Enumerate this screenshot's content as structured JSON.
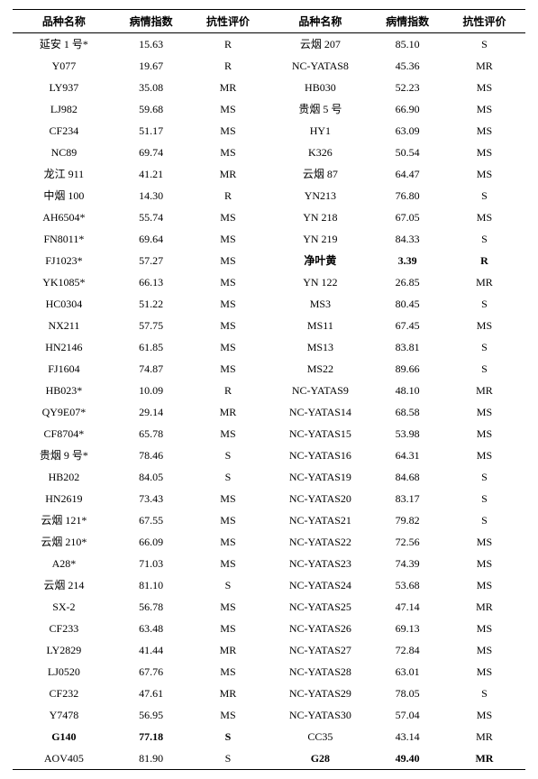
{
  "headers": {
    "name": "品种名称",
    "index": "病情指数",
    "eval": "抗性评价"
  },
  "rows": [
    {
      "l": {
        "name": "延安 1 号*",
        "idx": "15.63",
        "ev": "R"
      },
      "r": {
        "name": "云烟 207",
        "idx": "85.10",
        "ev": "S"
      }
    },
    {
      "l": {
        "name": "Y077",
        "idx": "19.67",
        "ev": "R"
      },
      "r": {
        "name": "NC-YATAS8",
        "idx": "45.36",
        "ev": "MR"
      }
    },
    {
      "l": {
        "name": "LY937",
        "idx": "35.08",
        "ev": "MR"
      },
      "r": {
        "name": "HB030",
        "idx": "52.23",
        "ev": "MS"
      }
    },
    {
      "l": {
        "name": "LJ982",
        "idx": "59.68",
        "ev": "MS"
      },
      "r": {
        "name": "贵烟 5 号",
        "idx": "66.90",
        "ev": "MS"
      }
    },
    {
      "l": {
        "name": "CF234",
        "idx": "51.17",
        "ev": "MS"
      },
      "r": {
        "name": "HY1",
        "idx": "63.09",
        "ev": "MS"
      }
    },
    {
      "l": {
        "name": "NC89",
        "idx": "69.74",
        "ev": "MS"
      },
      "r": {
        "name": "K326",
        "idx": "50.54",
        "ev": "MS"
      }
    },
    {
      "l": {
        "name": "龙江 911",
        "idx": "41.21",
        "ev": "MR"
      },
      "r": {
        "name": "云烟 87",
        "idx": "64.47",
        "ev": "MS"
      }
    },
    {
      "l": {
        "name": "中烟 100",
        "idx": "14.30",
        "ev": "R"
      },
      "r": {
        "name": "YN213",
        "idx": "76.80",
        "ev": "S"
      }
    },
    {
      "l": {
        "name": "AH6504*",
        "idx": "55.74",
        "ev": "MS"
      },
      "r": {
        "name": "YN 218",
        "idx": "67.05",
        "ev": "MS"
      }
    },
    {
      "l": {
        "name": "FN8011*",
        "idx": "69.64",
        "ev": "MS"
      },
      "r": {
        "name": "YN 219",
        "idx": "84.33",
        "ev": "S"
      }
    },
    {
      "l": {
        "name": "FJ1023*",
        "idx": "57.27",
        "ev": "MS"
      },
      "r": {
        "name": "净叶黄",
        "idx": "3.39",
        "ev": "R",
        "bold": true
      }
    },
    {
      "l": {
        "name": "YK1085*",
        "idx": "66.13",
        "ev": "MS"
      },
      "r": {
        "name": "YN 122",
        "idx": "26.85",
        "ev": "MR"
      }
    },
    {
      "l": {
        "name": "HC0304",
        "idx": "51.22",
        "ev": "MS"
      },
      "r": {
        "name": "MS3",
        "idx": "80.45",
        "ev": "S"
      }
    },
    {
      "l": {
        "name": "NX211",
        "idx": "57.75",
        "ev": "MS"
      },
      "r": {
        "name": "MS11",
        "idx": "67.45",
        "ev": "MS"
      }
    },
    {
      "l": {
        "name": "HN2146",
        "idx": "61.85",
        "ev": "MS"
      },
      "r": {
        "name": "MS13",
        "idx": "83.81",
        "ev": "S"
      }
    },
    {
      "l": {
        "name": "FJ1604",
        "idx": "74.87",
        "ev": "MS"
      },
      "r": {
        "name": "MS22",
        "idx": "89.66",
        "ev": "S"
      }
    },
    {
      "l": {
        "name": "HB023*",
        "idx": "10.09",
        "ev": "R"
      },
      "r": {
        "name": "NC-YATAS9",
        "idx": "48.10",
        "ev": "MR"
      }
    },
    {
      "l": {
        "name": "QY9E07*",
        "idx": "29.14",
        "ev": "MR"
      },
      "r": {
        "name": "NC-YATAS14",
        "idx": "68.58",
        "ev": "MS"
      }
    },
    {
      "l": {
        "name": "CF8704*",
        "idx": "65.78",
        "ev": "MS"
      },
      "r": {
        "name": "NC-YATAS15",
        "idx": "53.98",
        "ev": "MS"
      }
    },
    {
      "l": {
        "name": "贵烟 9 号*",
        "idx": "78.46",
        "ev": "S"
      },
      "r": {
        "name": "NC-YATAS16",
        "idx": "64.31",
        "ev": "MS"
      }
    },
    {
      "l": {
        "name": "HB202",
        "idx": "84.05",
        "ev": "S"
      },
      "r": {
        "name": "NC-YATAS19",
        "idx": "84.68",
        "ev": "S"
      }
    },
    {
      "l": {
        "name": "HN2619",
        "idx": "73.43",
        "ev": "MS"
      },
      "r": {
        "name": "NC-YATAS20",
        "idx": "83.17",
        "ev": "S"
      }
    },
    {
      "l": {
        "name": "云烟 121*",
        "idx": "67.55",
        "ev": "MS"
      },
      "r": {
        "name": "NC-YATAS21",
        "idx": "79.82",
        "ev": "S"
      }
    },
    {
      "l": {
        "name": "云烟 210*",
        "idx": "66.09",
        "ev": "MS"
      },
      "r": {
        "name": "NC-YATAS22",
        "idx": "72.56",
        "ev": "MS"
      }
    },
    {
      "l": {
        "name": "A28*",
        "idx": "71.03",
        "ev": "MS"
      },
      "r": {
        "name": "NC-YATAS23",
        "idx": "74.39",
        "ev": "MS"
      }
    },
    {
      "l": {
        "name": "云烟 214",
        "idx": "81.10",
        "ev": "S"
      },
      "r": {
        "name": "NC-YATAS24",
        "idx": "53.68",
        "ev": "MS"
      }
    },
    {
      "l": {
        "name": "SX-2",
        "idx": "56.78",
        "ev": "MS"
      },
      "r": {
        "name": "NC-YATAS25",
        "idx": "47.14",
        "ev": "MR"
      }
    },
    {
      "l": {
        "name": "CF233",
        "idx": "63.48",
        "ev": "MS"
      },
      "r": {
        "name": "NC-YATAS26",
        "idx": "69.13",
        "ev": "MS"
      }
    },
    {
      "l": {
        "name": "LY2829",
        "idx": "41.44",
        "ev": "MR"
      },
      "r": {
        "name": "NC-YATAS27",
        "idx": "72.84",
        "ev": "MS"
      }
    },
    {
      "l": {
        "name": "LJ0520",
        "idx": "67.76",
        "ev": "MS"
      },
      "r": {
        "name": "NC-YATAS28",
        "idx": "63.01",
        "ev": "MS"
      }
    },
    {
      "l": {
        "name": "CF232",
        "idx": "47.61",
        "ev": "MR"
      },
      "r": {
        "name": "NC-YATAS29",
        "idx": "78.05",
        "ev": "S"
      }
    },
    {
      "l": {
        "name": "Y7478",
        "idx": "56.95",
        "ev": "MS"
      },
      "r": {
        "name": "NC-YATAS30",
        "idx": "57.04",
        "ev": "MS"
      }
    },
    {
      "l": {
        "name": "G140",
        "idx": "77.18",
        "ev": "S",
        "bold": true
      },
      "r": {
        "name": "CC35",
        "idx": "43.14",
        "ev": "MR"
      }
    },
    {
      "l": {
        "name": "AOV405",
        "idx": "81.90",
        "ev": "S"
      },
      "r": {
        "name": "G28",
        "idx": "49.40",
        "ev": "MR",
        "bold": true
      }
    }
  ]
}
